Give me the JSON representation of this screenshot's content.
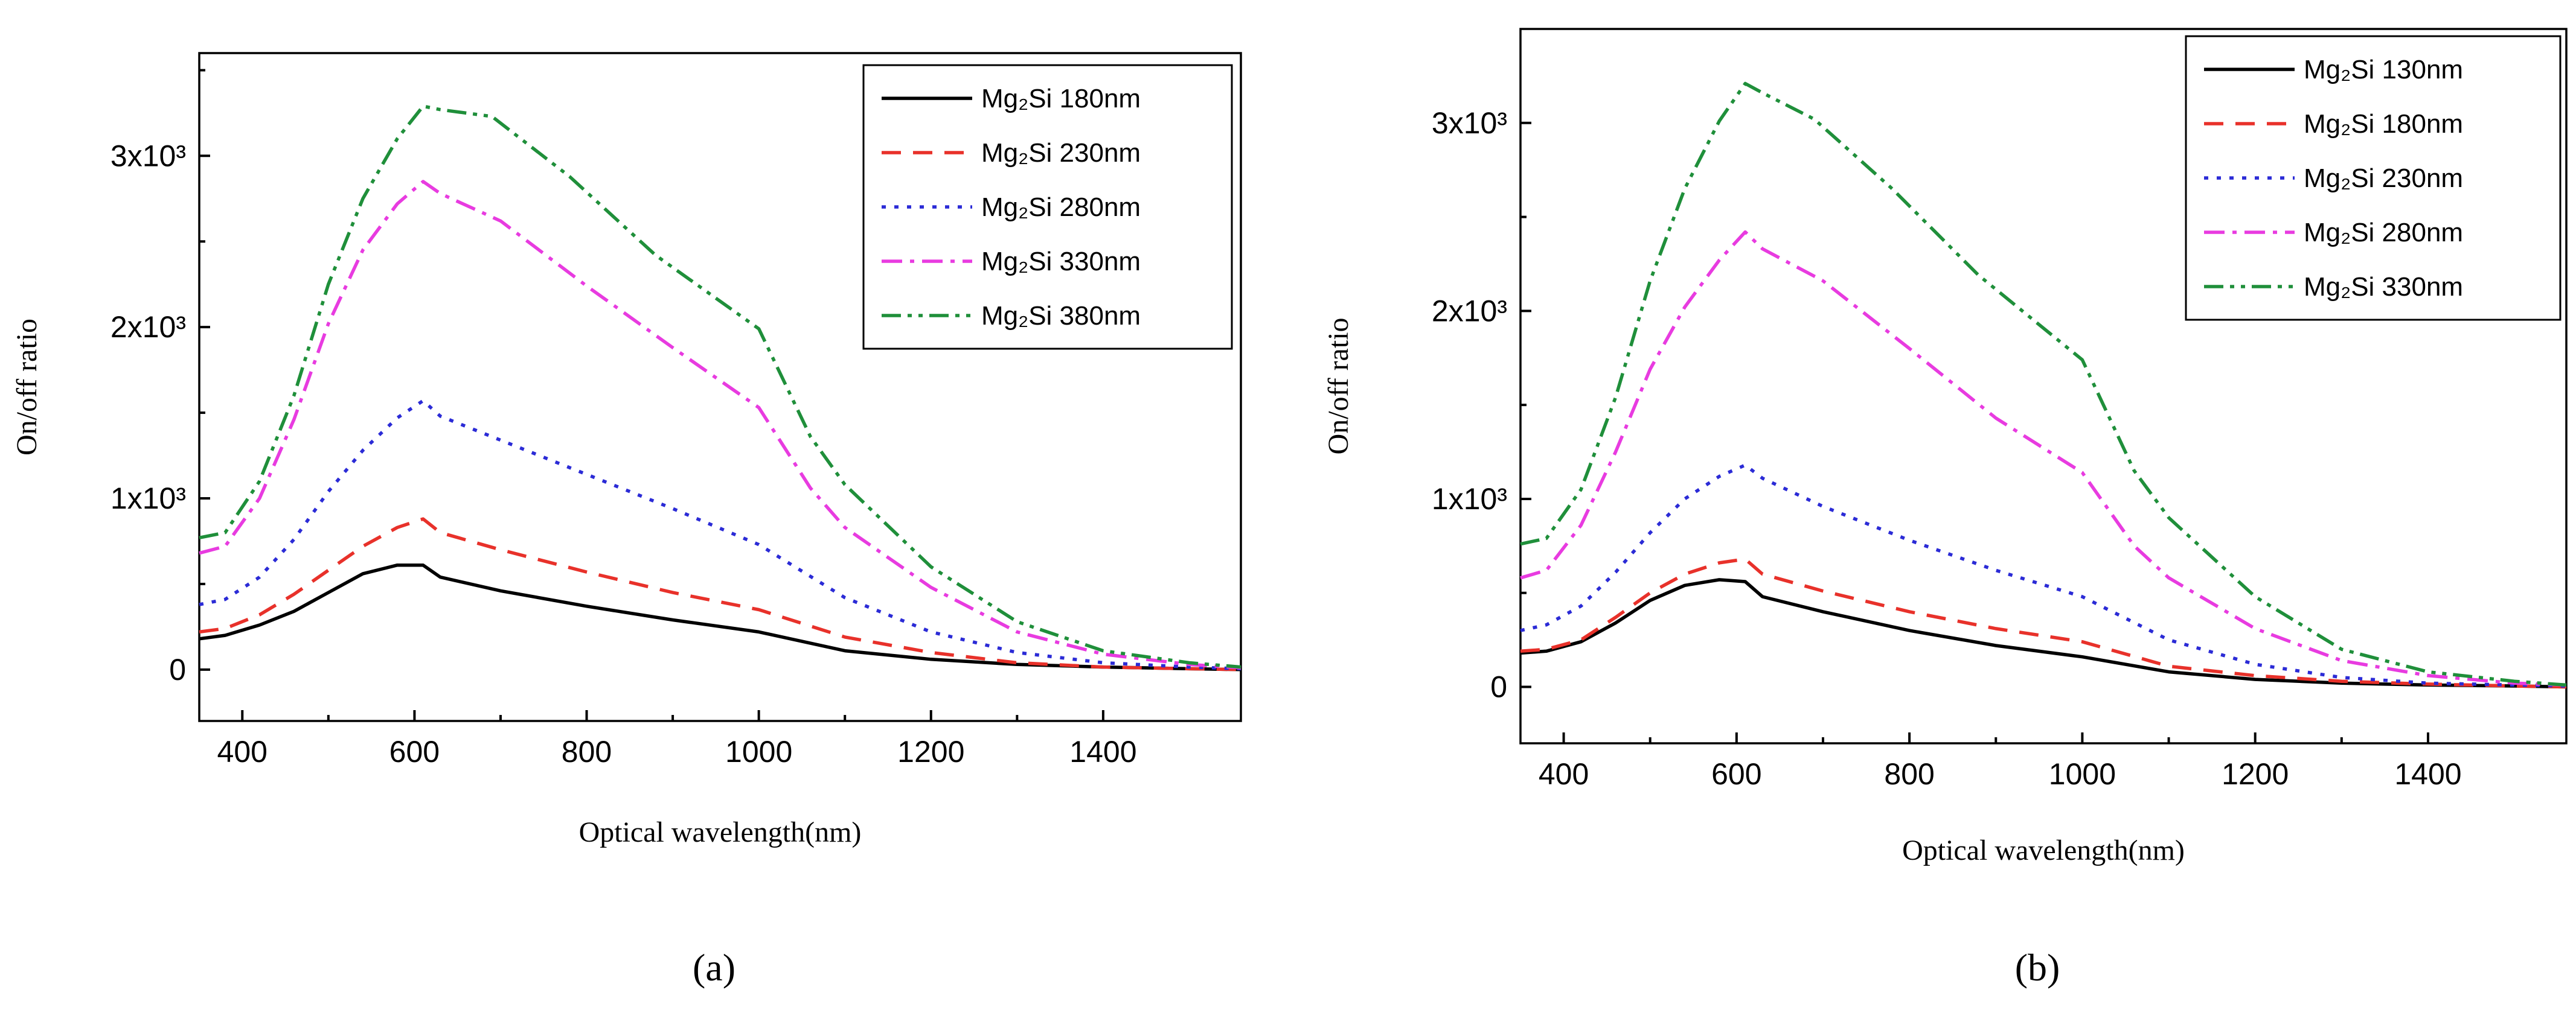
{
  "chart_data": [
    {
      "type": "line",
      "panel_label": "(a)",
      "xlabel": "Optical wavelength(nm)",
      "ylabel": "On/off ratio",
      "xlim": [
        350,
        1560
      ],
      "ylim": [
        -300,
        3600
      ],
      "xticks": [
        400,
        600,
        800,
        1000,
        1200,
        1400
      ],
      "xtick_labels": [
        "400",
        "600",
        "800",
        "1000",
        "1200",
        "1400"
      ],
      "yticks": [
        0,
        1000,
        2000,
        3000
      ],
      "ytick_labels": [
        "0",
        "1x10³",
        "2x10³",
        "3x10³"
      ],
      "legend_position": "top-right",
      "series": [
        {
          "name": "Mg₂Si 180nm",
          "color": "#000000",
          "dash": "solid",
          "x": [
            350,
            380,
            420,
            460,
            500,
            540,
            580,
            610,
            630,
            700,
            800,
            900,
            1000,
            1100,
            1200,
            1300,
            1400,
            1500,
            1560
          ],
          "y": [
            180,
            200,
            260,
            340,
            450,
            560,
            610,
            610,
            540,
            460,
            370,
            290,
            220,
            110,
            60,
            30,
            15,
            5,
            0
          ]
        },
        {
          "name": "Mg₂Si 230nm",
          "color": "#e8312a",
          "dash": "dashed",
          "x": [
            350,
            380,
            420,
            460,
            500,
            540,
            580,
            610,
            630,
            700,
            800,
            900,
            1000,
            1100,
            1200,
            1300,
            1400,
            1500,
            1560
          ],
          "y": [
            220,
            240,
            320,
            440,
            580,
            720,
            830,
            880,
            800,
            700,
            570,
            450,
            350,
            190,
            100,
            40,
            15,
            5,
            0
          ]
        },
        {
          "name": "Mg₂Si 280nm",
          "color": "#2b2bd6",
          "dash": "dotted",
          "x": [
            350,
            380,
            420,
            460,
            500,
            540,
            580,
            610,
            630,
            700,
            800,
            900,
            1000,
            1100,
            1200,
            1300,
            1400,
            1500,
            1560
          ],
          "y": [
            380,
            410,
            540,
            760,
            1040,
            1280,
            1470,
            1570,
            1480,
            1340,
            1140,
            940,
            730,
            420,
            220,
            100,
            40,
            15,
            5
          ]
        },
        {
          "name": "Mg₂Si 330nm",
          "color": "#e83be0",
          "dash": "dashdot",
          "x": [
            350,
            380,
            420,
            460,
            500,
            540,
            580,
            610,
            630,
            700,
            800,
            900,
            1000,
            1060,
            1100,
            1200,
            1300,
            1400,
            1500,
            1560
          ],
          "y": [
            680,
            720,
            1000,
            1460,
            2020,
            2450,
            2720,
            2850,
            2780,
            2620,
            2240,
            1880,
            1530,
            1060,
            830,
            480,
            220,
            90,
            30,
            10
          ]
        },
        {
          "name": "Mg₂Si 380nm",
          "color": "#1f8f3a",
          "dash": "dashdotdot",
          "x": [
            350,
            380,
            420,
            460,
            500,
            540,
            580,
            610,
            630,
            690,
            780,
            880,
            1000,
            1060,
            1100,
            1200,
            1300,
            1400,
            1500,
            1560
          ],
          "y": [
            770,
            800,
            1100,
            1600,
            2250,
            2750,
            3100,
            3290,
            3270,
            3230,
            2880,
            2420,
            1990,
            1360,
            1080,
            600,
            280,
            110,
            40,
            15
          ]
        }
      ]
    },
    {
      "type": "line",
      "panel_label": "(b)",
      "xlabel": "Optical wavelength(nm)",
      "ylabel": "On/off ratio",
      "xlim": [
        350,
        1560
      ],
      "ylim": [
        -300,
        3500
      ],
      "xticks": [
        400,
        600,
        800,
        1000,
        1200,
        1400
      ],
      "xtick_labels": [
        "400",
        "600",
        "800",
        "1000",
        "1200",
        "1400"
      ],
      "yticks": [
        0,
        1000,
        2000,
        3000
      ],
      "ytick_labels": [
        "0",
        "1x10³",
        "2x10³",
        "3x10³"
      ],
      "legend_position": "top-right",
      "series": [
        {
          "name": "Mg₂Si 130nm",
          "color": "#000000",
          "dash": "solid",
          "x": [
            350,
            380,
            420,
            460,
            500,
            540,
            580,
            610,
            630,
            700,
            800,
            900,
            1000,
            1100,
            1200,
            1300,
            1400,
            1500,
            1560
          ],
          "y": [
            180,
            190,
            240,
            340,
            460,
            540,
            570,
            560,
            480,
            400,
            300,
            220,
            160,
            80,
            40,
            20,
            10,
            5,
            0
          ]
        },
        {
          "name": "Mg₂Si 180nm",
          "color": "#e8312a",
          "dash": "dashed",
          "x": [
            350,
            380,
            420,
            460,
            500,
            540,
            580,
            610,
            630,
            700,
            800,
            900,
            1000,
            1100,
            1200,
            1300,
            1400,
            1500,
            1560
          ],
          "y": [
            190,
            200,
            250,
            370,
            500,
            600,
            660,
            680,
            600,
            510,
            400,
            310,
            240,
            110,
            60,
            30,
            15,
            5,
            0
          ]
        },
        {
          "name": "Mg₂Si 230nm",
          "color": "#2b2bd6",
          "dash": "dotted",
          "x": [
            350,
            380,
            420,
            460,
            500,
            540,
            580,
            610,
            630,
            700,
            800,
            900,
            1000,
            1100,
            1200,
            1300,
            1400,
            1500,
            1560
          ],
          "y": [
            300,
            330,
            430,
            610,
            820,
            1000,
            1120,
            1180,
            1110,
            960,
            780,
            620,
            480,
            250,
            120,
            50,
            20,
            10,
            5
          ]
        },
        {
          "name": "Mg₂Si 280nm",
          "color": "#e83be0",
          "dash": "dashdot",
          "x": [
            350,
            380,
            420,
            460,
            500,
            540,
            580,
            610,
            630,
            700,
            800,
            900,
            1000,
            1060,
            1100,
            1200,
            1300,
            1400,
            1500,
            1560
          ],
          "y": [
            580,
            620,
            860,
            1250,
            1690,
            2020,
            2270,
            2420,
            2330,
            2160,
            1800,
            1430,
            1140,
            750,
            580,
            310,
            140,
            60,
            20,
            10
          ]
        },
        {
          "name": "Mg₂Si 330nm",
          "color": "#1f8f3a",
          "dash": "dashdotdot",
          "x": [
            350,
            380,
            420,
            460,
            500,
            540,
            580,
            610,
            630,
            690,
            780,
            880,
            1000,
            1060,
            1100,
            1200,
            1300,
            1400,
            1500,
            1560
          ],
          "y": [
            760,
            790,
            1050,
            1540,
            2160,
            2650,
            3010,
            3210,
            3160,
            3020,
            2650,
            2190,
            1740,
            1150,
            900,
            480,
            200,
            80,
            30,
            10
          ]
        }
      ]
    }
  ]
}
